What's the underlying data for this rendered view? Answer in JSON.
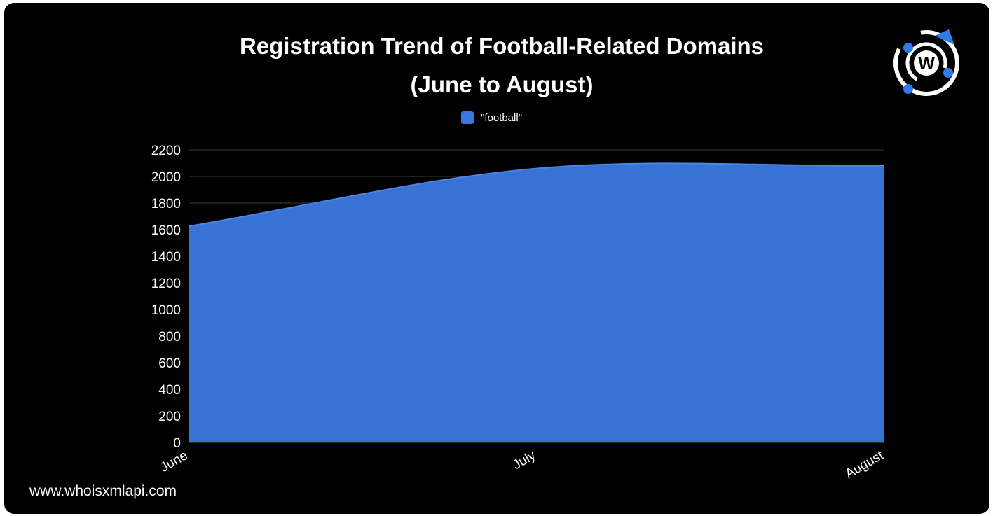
{
  "watermark_url": "www.whoisxmlapi.com",
  "logo": {
    "icon": "whoisxmlapi-logo",
    "letter": "W",
    "color": "#2F7BEA"
  },
  "colors": {
    "background": "#000000",
    "area": "#3B78DD",
    "text": "#FFFFFF",
    "grid": "#3A3A3A"
  },
  "chart_data": {
    "type": "area",
    "title_lines": [
      "Registration Trend of Football-Related Domains",
      "(June to August)"
    ],
    "categories": [
      "June",
      "July",
      "August"
    ],
    "series": [
      {
        "name": "\"football\"",
        "values": [
          1625,
          2060,
          2080
        ],
        "color": "#3B78DD"
      }
    ],
    "ylim": [
      0,
      2200
    ],
    "yticks": [
      0,
      200,
      400,
      600,
      800,
      1000,
      1200,
      1400,
      1600,
      1800,
      2000,
      2200
    ],
    "grid": true,
    "smooth": true,
    "legend_position": "top-center",
    "xlabel": "",
    "ylabel": ""
  }
}
